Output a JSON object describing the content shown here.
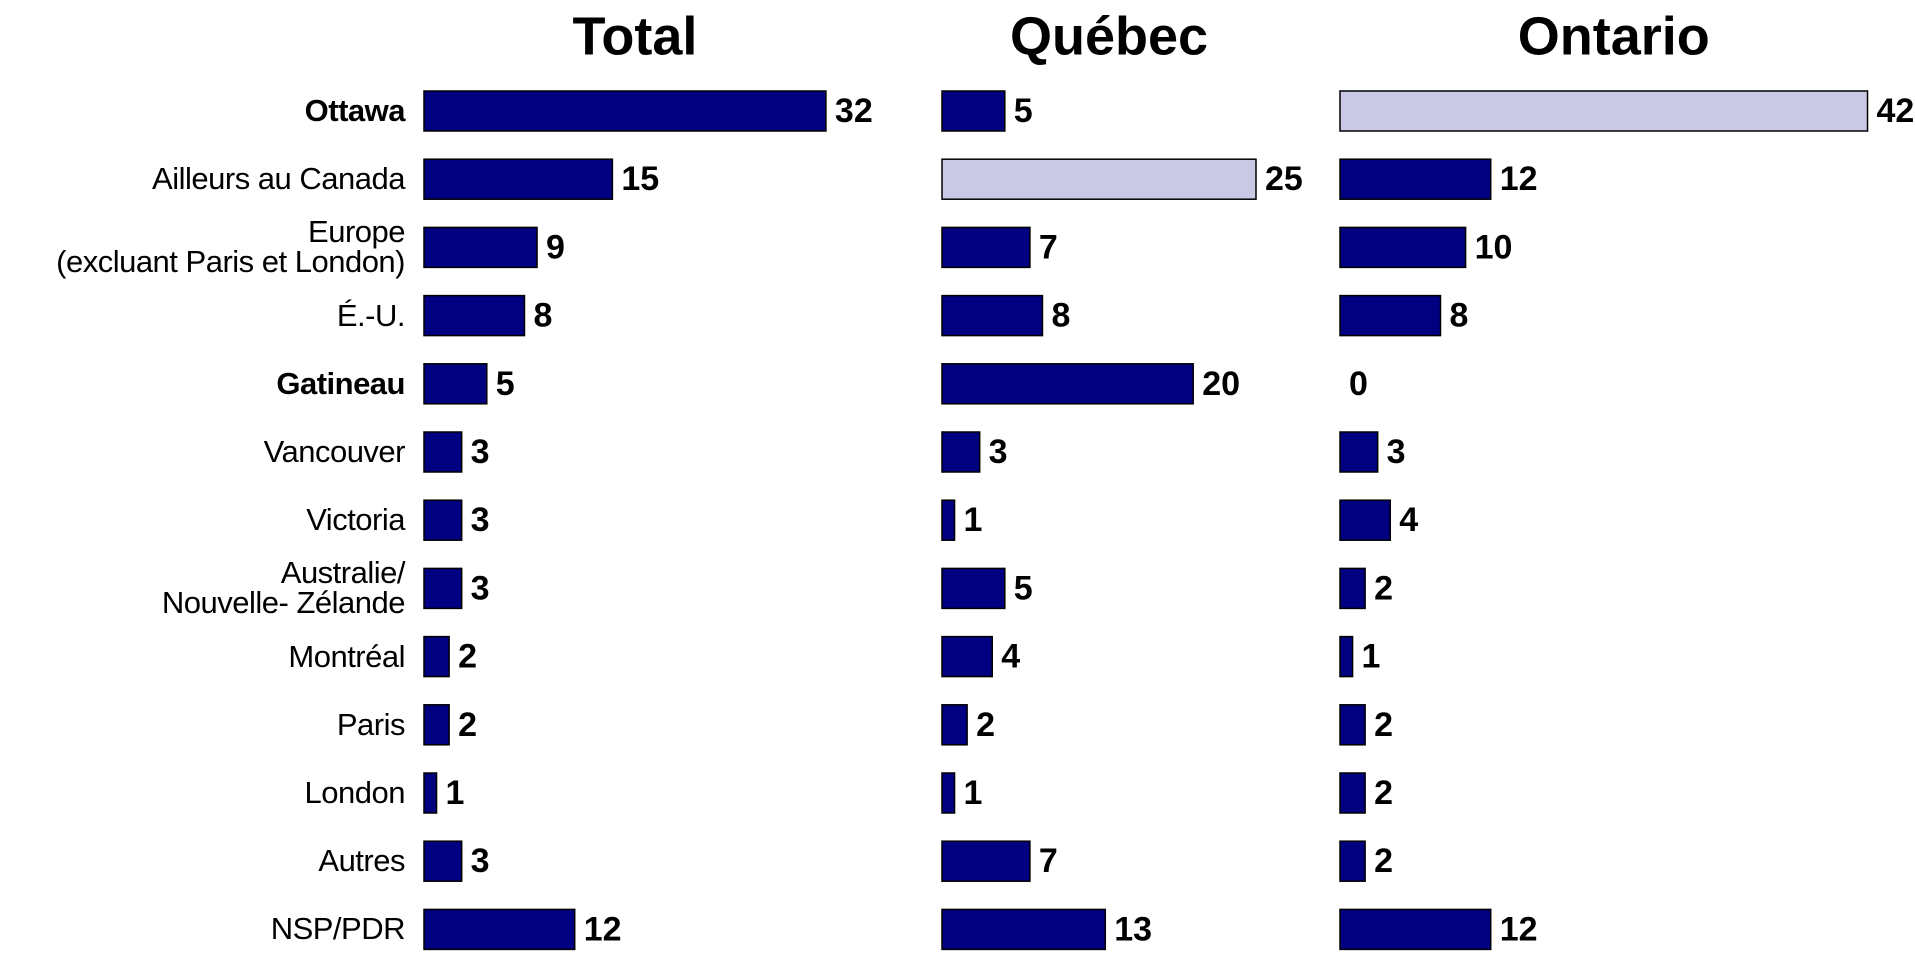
{
  "chart_data": {
    "type": "bar",
    "orientation": "horizontal",
    "categories": [
      "Ottawa",
      "Ailleurs au Canada",
      "Europe\n(excluant Paris et London)",
      "É.-U.",
      "Gatineau",
      "Vancouver",
      "Victoria",
      "Australie/\nNouvelle- Zélande",
      "Montréal",
      "Paris",
      "London",
      "Autres",
      "NSP/PDR"
    ],
    "bold_categories": [
      "Ottawa",
      "Gatineau"
    ],
    "series": [
      {
        "name": "Total",
        "color": "#000080",
        "values": [
          32,
          15,
          9,
          8,
          5,
          3,
          3,
          3,
          2,
          2,
          1,
          3,
          12
        ],
        "colors": [
          "#000080",
          "#000080",
          "#000080",
          "#000080",
          "#000080",
          "#000080",
          "#000080",
          "#000080",
          "#000080",
          "#000080",
          "#000080",
          "#000080",
          "#000080"
        ]
      },
      {
        "name": "Québec",
        "color": "#000080",
        "values": [
          5,
          25,
          7,
          8,
          20,
          3,
          1,
          5,
          4,
          2,
          1,
          7,
          13
        ],
        "colors": [
          "#000080",
          "#c9c9e6",
          "#000080",
          "#000080",
          "#000080",
          "#000080",
          "#000080",
          "#000080",
          "#000080",
          "#000080",
          "#000080",
          "#000080",
          "#000080"
        ]
      },
      {
        "name": "Ontario",
        "color": "#000080",
        "values": [
          42,
          12,
          10,
          8,
          0,
          3,
          4,
          2,
          1,
          2,
          2,
          2,
          12
        ],
        "colors": [
          "#c9c9e6",
          "#000080",
          "#000080",
          "#000080",
          "#000080",
          "#000080",
          "#000080",
          "#000080",
          "#000080",
          "#000080",
          "#000080",
          "#000080",
          "#000080"
        ]
      }
    ]
  }
}
